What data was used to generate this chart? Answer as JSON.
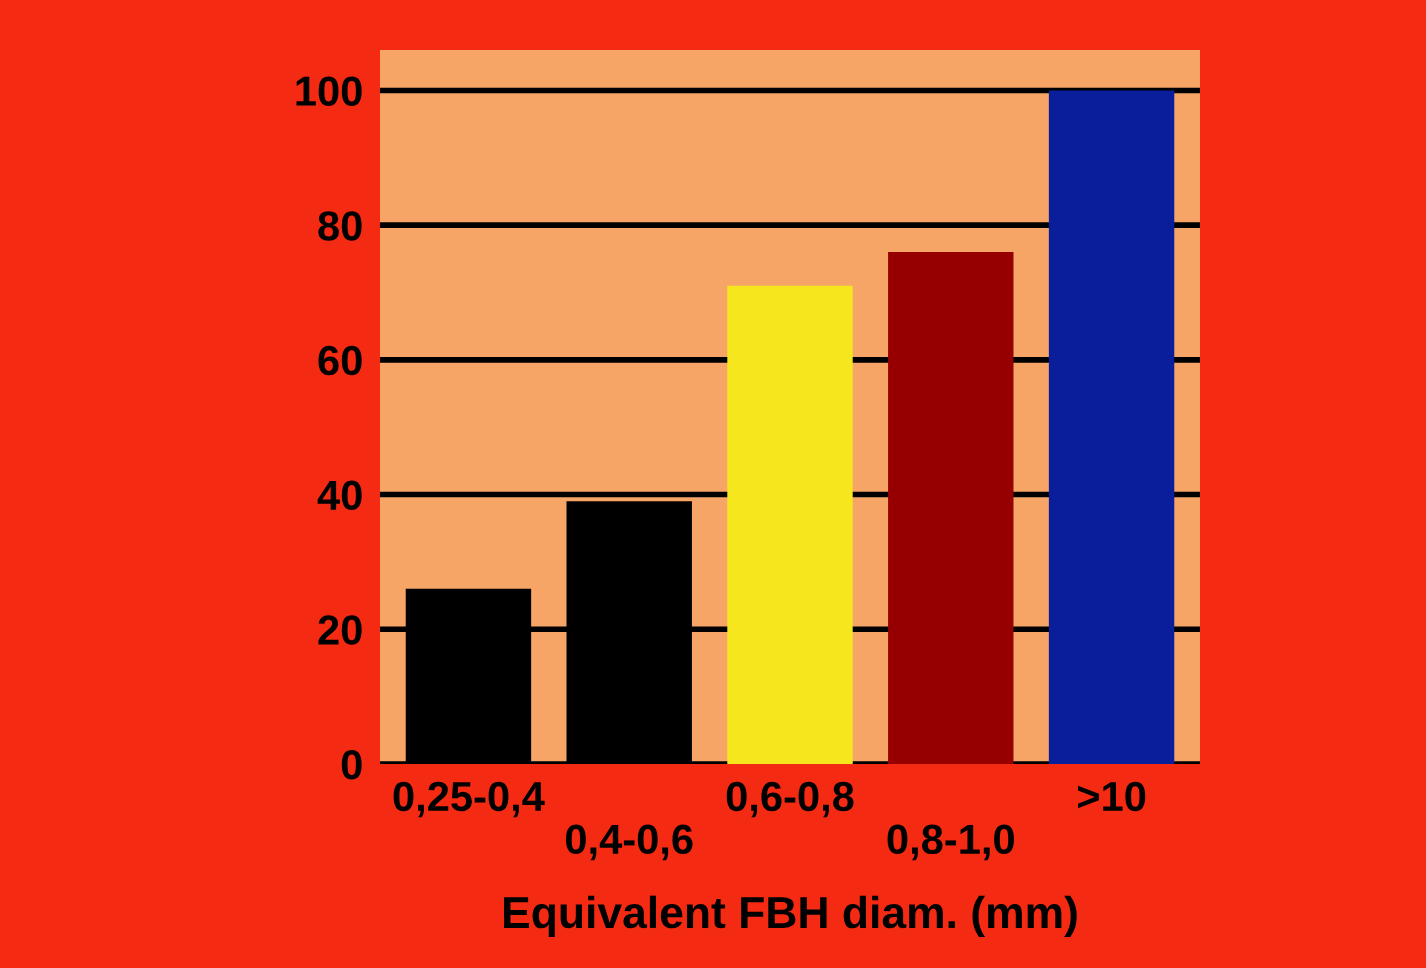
{
  "chart_data": {
    "type": "bar",
    "xlabel": "Equivalent FBH diam. (mm)",
    "categories": [
      "0,25-0,4",
      "0,4-0,6",
      "0,6-0,8",
      "0,8-1,0",
      ">10"
    ],
    "values": [
      26,
      39,
      71,
      76,
      100
    ],
    "colors": [
      "#000000",
      "#000000",
      "#f5e61e",
      "#960000",
      "#0a1e9b"
    ],
    "ylim": [
      0,
      106
    ],
    "yticks": [
      0,
      20,
      40,
      60,
      80,
      100
    ],
    "grid": "y"
  }
}
